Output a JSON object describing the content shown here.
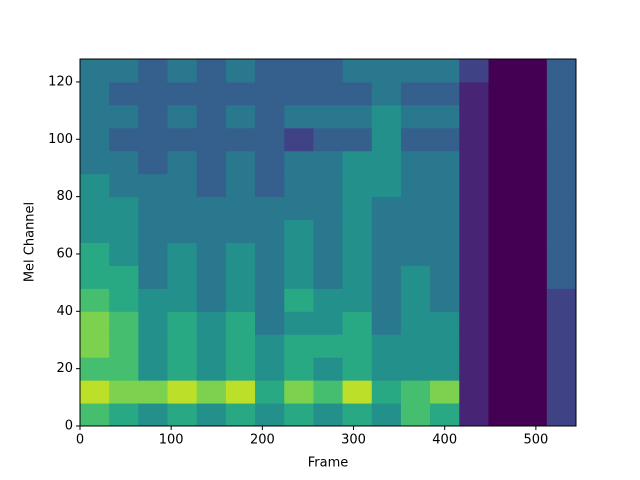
{
  "chart_data": {
    "type": "heatmap",
    "xlabel": "Frame",
    "ylabel": "Mel Channel",
    "xlim": [
      0,
      544
    ],
    "ylim": [
      0,
      128
    ],
    "xticks": [
      0,
      100,
      200,
      300,
      400,
      500
    ],
    "yticks": [
      0,
      20,
      40,
      60,
      80,
      100,
      120
    ],
    "colormap": "viridis",
    "clim": [
      0,
      10
    ],
    "x_bins": [
      0,
      32,
      64,
      96,
      128,
      160,
      192,
      224,
      256,
      288,
      320,
      352,
      384,
      416,
      448,
      480,
      512,
      544
    ],
    "y_bins": [
      0,
      8,
      16,
      24,
      32,
      40,
      48,
      56,
      64,
      72,
      80,
      88,
      96,
      104,
      112,
      120,
      128
    ],
    "values": [
      [
        7,
        9,
        7,
        8,
        8,
        7,
        6,
        6,
        5,
        5,
        5,
        4,
        4,
        4,
        4,
        4
      ],
      [
        6,
        8,
        7,
        7,
        7,
        6,
        6,
        5,
        5,
        5,
        4,
        4,
        3,
        4,
        3,
        4
      ],
      [
        5,
        8,
        5,
        5,
        5,
        5,
        4,
        4,
        4,
        4,
        4,
        3,
        3,
        3,
        3,
        3
      ],
      [
        6,
        9,
        6,
        6,
        6,
        5,
        5,
        5,
        4,
        4,
        4,
        4,
        3,
        4,
        3,
        4
      ],
      [
        5,
        8,
        5,
        5,
        5,
        4,
        4,
        4,
        4,
        4,
        3,
        3,
        3,
        3,
        3,
        3
      ],
      [
        6,
        9,
        6,
        6,
        6,
        5,
        5,
        5,
        4,
        4,
        4,
        4,
        3,
        4,
        3,
        4
      ],
      [
        5,
        6,
        5,
        5,
        4,
        4,
        4,
        4,
        4,
        4,
        3,
        3,
        3,
        3,
        3,
        3
      ],
      [
        6,
        8,
        6,
        6,
        5,
        6,
        5,
        5,
        5,
        4,
        4,
        4,
        2,
        4,
        3,
        3
      ],
      [
        5,
        7,
        5,
        6,
        5,
        5,
        4,
        4,
        4,
        4,
        4,
        4,
        3,
        4,
        3,
        3
      ],
      [
        6,
        9,
        6,
        6,
        6,
        5,
        5,
        5,
        5,
        5,
        5,
        5,
        3,
        4,
        3,
        4
      ],
      [
        5,
        6,
        5,
        5,
        4,
        4,
        4,
        4,
        4,
        4,
        5,
        5,
        5,
        5,
        4,
        4
      ],
      [
        7,
        7,
        5,
        5,
        5,
        5,
        5,
        4,
        4,
        4,
        4,
        4,
        3,
        4,
        3,
        4
      ],
      [
        6,
        8,
        5,
        5,
        5,
        4,
        4,
        4,
        4,
        4,
        4,
        4,
        3,
        4,
        3,
        4
      ],
      [
        1,
        1,
        1,
        1,
        1,
        1,
        1,
        1,
        1,
        1,
        1,
        1,
        1,
        1,
        1,
        2
      ],
      [
        0,
        0,
        0,
        0,
        0,
        0,
        0,
        0,
        0,
        0,
        0,
        0,
        0,
        0,
        0,
        0
      ],
      [
        0,
        0,
        0,
        0,
        0,
        0,
        0,
        0,
        0,
        0,
        0,
        0,
        0,
        0,
        0,
        0
      ],
      [
        2,
        2,
        2,
        2,
        2,
        2,
        3,
        3,
        3,
        3,
        3,
        3,
        3,
        3,
        3,
        3
      ]
    ]
  }
}
